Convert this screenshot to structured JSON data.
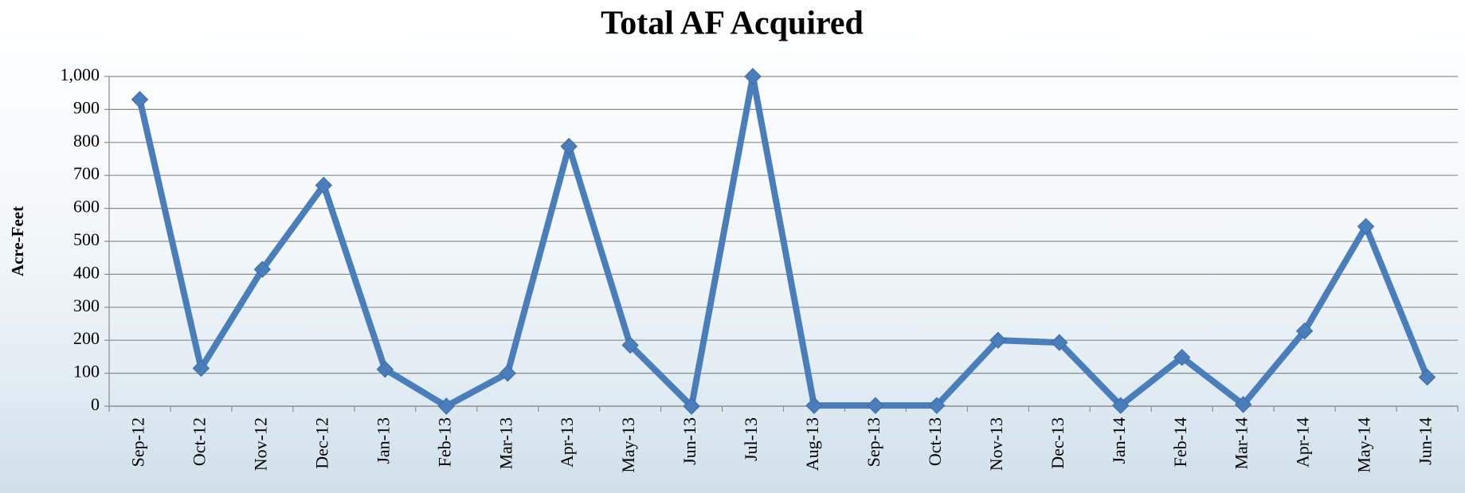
{
  "chart_data": {
    "type": "line",
    "title": "Total AF Acquired",
    "y_label": "Acre-Feet",
    "categories": [
      "Sep-12",
      "Oct-12",
      "Nov-12",
      "Dec-12",
      "Jan-13",
      "Feb-13",
      "Mar-13",
      "Apr-13",
      "May-13",
      "Jun-13",
      "Jul-13",
      "Aug-13",
      "Sep-13",
      "Oct-13",
      "Nov-13",
      "Dec-13",
      "Jan-14",
      "Feb-14",
      "Mar-14",
      "Apr-14",
      "May-14",
      "Jun-14"
    ],
    "values": [
      930,
      115,
      415,
      670,
      112,
      0,
      100,
      788,
      185,
      0,
      1000,
      2,
      2,
      2,
      200,
      193,
      2,
      148,
      5,
      228,
      545,
      88
    ],
    "color": "#4a7ebb",
    "ylim": [
      0,
      1000
    ],
    "yticks": [
      0,
      100,
      200,
      300,
      400,
      500,
      600,
      700,
      800,
      900,
      {
        "value": 1000,
        "label": "1,000"
      }
    ],
    "grid": true
  }
}
